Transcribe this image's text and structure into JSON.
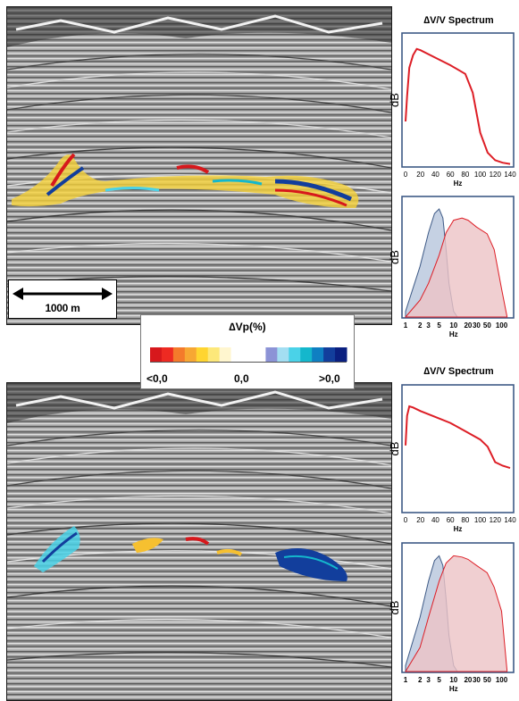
{
  "scale_bar": {
    "label": "1000 m"
  },
  "legend": {
    "title": "∆Vp(%)",
    "tick_left": "<0,0",
    "tick_mid": "0,0",
    "tick_right": ">0,0",
    "negative_colors": [
      "#d7181c",
      "#ee2a22",
      "#f47a2b",
      "#f7a733",
      "#ffd530",
      "#fde87a",
      "#fff6cf"
    ],
    "positive_colors": [
      "#8c93d6",
      "#a3def2",
      "#4ad2e8",
      "#14b7cc",
      "#0f7fc2",
      "#123e9c",
      "#0a1f80"
    ]
  },
  "colors": {
    "red_line": "#dd1e26",
    "blue_fill": "#b7c6dc",
    "red_fill": "#ecc3c5",
    "frame": "#3e5a86"
  },
  "chart_data": [
    {
      "type": "line",
      "title": "∆V/V Spectrum",
      "xlabel": "Hz",
      "ylabel": "dB",
      "xlim": [
        0,
        140
      ],
      "xticks": [
        "0",
        "20",
        "40",
        "60",
        "80",
        "100",
        "120",
        "140"
      ],
      "series": [
        {
          "x": [
            0,
            2,
            5,
            10,
            15,
            20,
            40,
            60,
            80,
            90,
            100,
            110,
            120,
            130,
            140
          ],
          "values": [
            0.35,
            0.55,
            0.78,
            0.88,
            0.93,
            0.92,
            0.86,
            0.8,
            0.73,
            0.58,
            0.26,
            0.1,
            0.04,
            0.02,
            0.01
          ]
        }
      ]
    },
    {
      "type": "area",
      "xlabel": "Hz",
      "ylabel": "dB",
      "xscale": "log",
      "xticks": [
        "1",
        "2",
        "3",
        "5",
        "10",
        "20",
        "30",
        "50",
        "100"
      ],
      "series": [
        {
          "x": [
            1,
            2,
            3,
            4,
            5,
            6,
            7,
            8,
            10,
            12
          ],
          "values": [
            0.05,
            0.45,
            0.75,
            0.92,
            0.96,
            0.88,
            0.6,
            0.3,
            0.05,
            0.0
          ]
        },
        {
          "x": [
            1,
            2,
            3,
            5,
            7,
            10,
            15,
            20,
            30,
            50,
            70,
            100,
            130
          ],
          "values": [
            0.0,
            0.15,
            0.3,
            0.55,
            0.75,
            0.86,
            0.88,
            0.86,
            0.8,
            0.74,
            0.6,
            0.25,
            0.0
          ]
        }
      ]
    },
    {
      "type": "line",
      "title": "∆V/V Spectrum",
      "xlabel": "Hz",
      "ylabel": "dB",
      "xlim": [
        0,
        140
      ],
      "xticks": [
        "0",
        "20",
        "40",
        "60",
        "80",
        "100",
        "120",
        "140"
      ],
      "series": [
        {
          "x": [
            0,
            2,
            5,
            10,
            20,
            40,
            60,
            80,
            100,
            110,
            120,
            130,
            140
          ],
          "values": [
            0.55,
            0.8,
            0.88,
            0.87,
            0.84,
            0.79,
            0.74,
            0.67,
            0.6,
            0.54,
            0.41,
            0.38,
            0.36
          ]
        }
      ]
    },
    {
      "type": "area",
      "xlabel": "Hz",
      "ylabel": "dB",
      "xscale": "log",
      "xticks": [
        "1",
        "2",
        "3",
        "5",
        "10",
        "20",
        "30",
        "50",
        "100"
      ],
      "series": [
        {
          "x": [
            1,
            2,
            3,
            4,
            5,
            6,
            7,
            8,
            10,
            12
          ],
          "values": [
            0.05,
            0.45,
            0.75,
            0.92,
            0.96,
            0.88,
            0.6,
            0.3,
            0.05,
            0.0
          ]
        },
        {
          "x": [
            1,
            2,
            3,
            5,
            7,
            10,
            15,
            20,
            30,
            50,
            70,
            100,
            130
          ],
          "values": [
            0.0,
            0.2,
            0.45,
            0.75,
            0.9,
            0.96,
            0.95,
            0.93,
            0.88,
            0.82,
            0.7,
            0.5,
            0.0
          ]
        }
      ]
    }
  ]
}
